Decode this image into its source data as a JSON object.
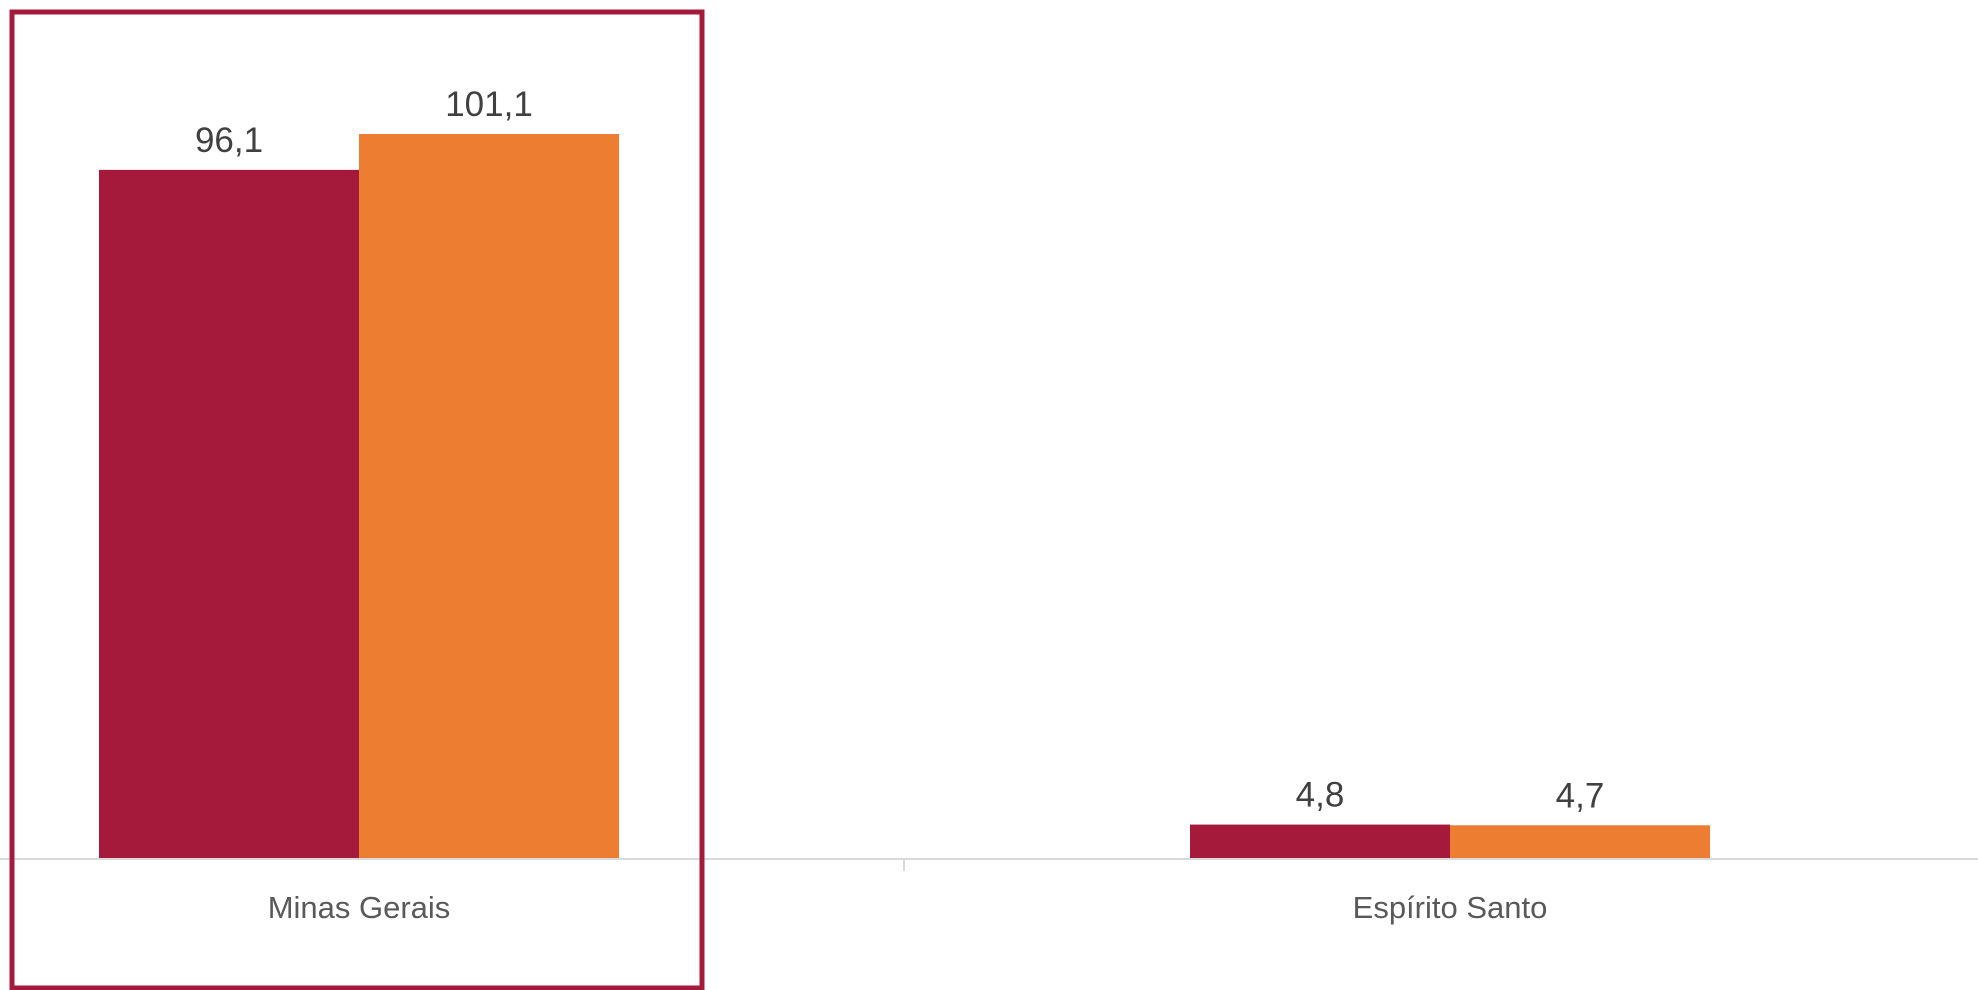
{
  "chart_data": {
    "type": "bar",
    "categories": [
      "Minas Gerais",
      "Espírito Santo"
    ],
    "series": [
      {
        "color": "#A5193B",
        "values": [
          96.1,
          4.8
        ],
        "labels": [
          "96,1",
          "4,8"
        ]
      },
      {
        "color": "#ED7D31",
        "values": [
          101.1,
          4.7
        ],
        "labels": [
          "101,1",
          "4,7"
        ]
      }
    ],
    "ylim": [
      0,
      117
    ],
    "grid": false,
    "highlight": {
      "category": "Minas Gerais",
      "color": "#A5193B"
    },
    "axis_color": "#D9D9D9"
  }
}
